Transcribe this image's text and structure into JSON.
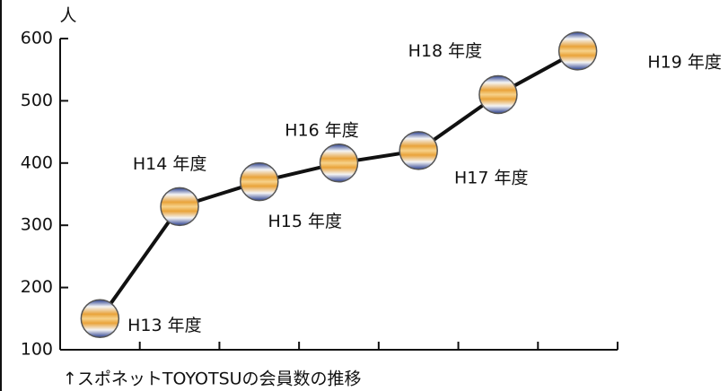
{
  "chart_data": {
    "type": "line",
    "y_unit": "人",
    "caption": "↑スポネットTOYOTSUの会員数の推移",
    "categories": [
      "H13 年度",
      "H14 年度",
      "H15 年度",
      "H16 年度",
      "H17 年度",
      "H18 年度",
      "H19 年度"
    ],
    "values": [
      150,
      330,
      370,
      400,
      420,
      510,
      580
    ],
    "color": "#111111",
    "ylim": [
      100,
      600
    ],
    "yticks": [
      100,
      200,
      300,
      400,
      500,
      600
    ]
  }
}
